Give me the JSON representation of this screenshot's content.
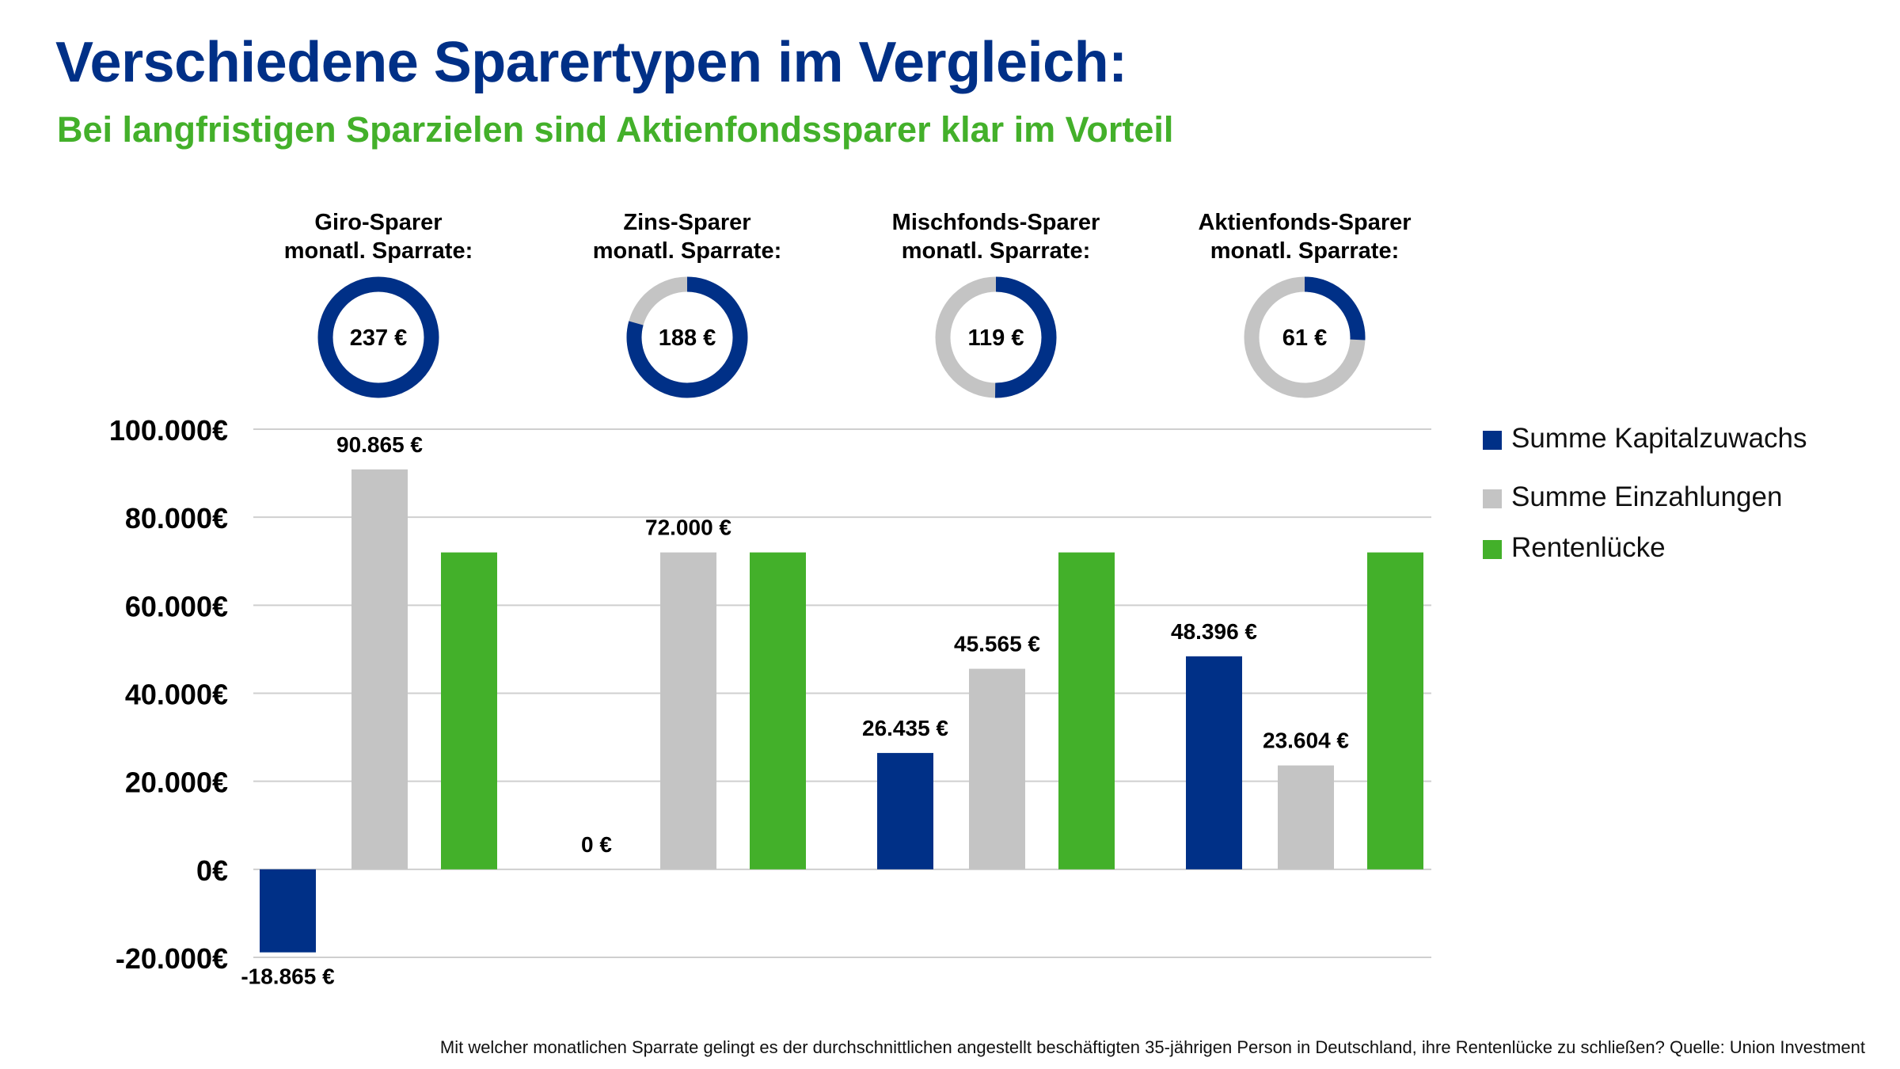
{
  "title": "Verschiedene Sparertypen im Vergleich:",
  "subtitle": "Bei langfristigen Sparzielen sind Aktienfondssparer klar im Vorteil",
  "footnote": "Mit welcher monatlichen Sparrate gelingt es der durchschnittlichen angestellt beschäftigten 35-jährigen Person in Deutschland, ihre Rentenlücke zu schließen? Quelle: Union Investment",
  "colors": {
    "kapital": "#003087",
    "einzahlungen": "#c4c4c4",
    "rentenluecke": "#43b02a",
    "title": "#003087",
    "subtitle": "#43b02a"
  },
  "chart_data": [
    {
      "type": "pie",
      "variant": "donut",
      "groups": [
        {
          "label_line1": "Giro-Sparer",
          "label_line2": "monatl. Sparrate:",
          "value_label": "237 €",
          "value": 237
        },
        {
          "label_line1": "Zins-Sparer",
          "label_line2": "monatl. Sparrate:",
          "value_label": "188  €",
          "value": 188
        },
        {
          "label_line1": "Mischfonds-Sparer",
          "label_line2": "monatl. Sparrate:",
          "value_label": "119 €",
          "value": 119
        },
        {
          "label_line1": "Aktienfonds-Sparer",
          "label_line2": "monatl. Sparrate:",
          "value_label": "61 €",
          "value": 61
        }
      ],
      "max": 237
    },
    {
      "type": "bar",
      "categories": [
        "Giro-Sparer",
        "Zins-Sparer",
        "Mischfonds-Sparer",
        "Aktienfonds-Sparer"
      ],
      "series": [
        {
          "name": "Summe Kapitalzuwachs",
          "values": [
            -18865,
            0,
            26435,
            48396
          ],
          "labels": [
            "-18.865 €",
            "0 €",
            "26.435 €",
            "48.396 €"
          ]
        },
        {
          "name": "Summe Einzahlungen",
          "values": [
            90865,
            72000,
            45565,
            23604
          ],
          "labels": [
            "90.865 €",
            "72.000 €",
            "45.565 €",
            "23.604 €"
          ]
        },
        {
          "name": "Rentenlücke",
          "values": [
            72000,
            72000,
            72000,
            72000
          ],
          "labels": [
            "",
            "",
            "",
            ""
          ]
        }
      ],
      "ylim": [
        -20000,
        100000
      ],
      "yticks": [
        100000,
        80000,
        60000,
        40000,
        20000,
        0,
        -20000
      ],
      "ytick_labels": [
        "100.000€",
        "80.000€",
        "60.000€",
        "40.000€",
        "20.000€",
        "0€",
        "-20.000€"
      ],
      "grid": true,
      "legend": "right"
    }
  ]
}
